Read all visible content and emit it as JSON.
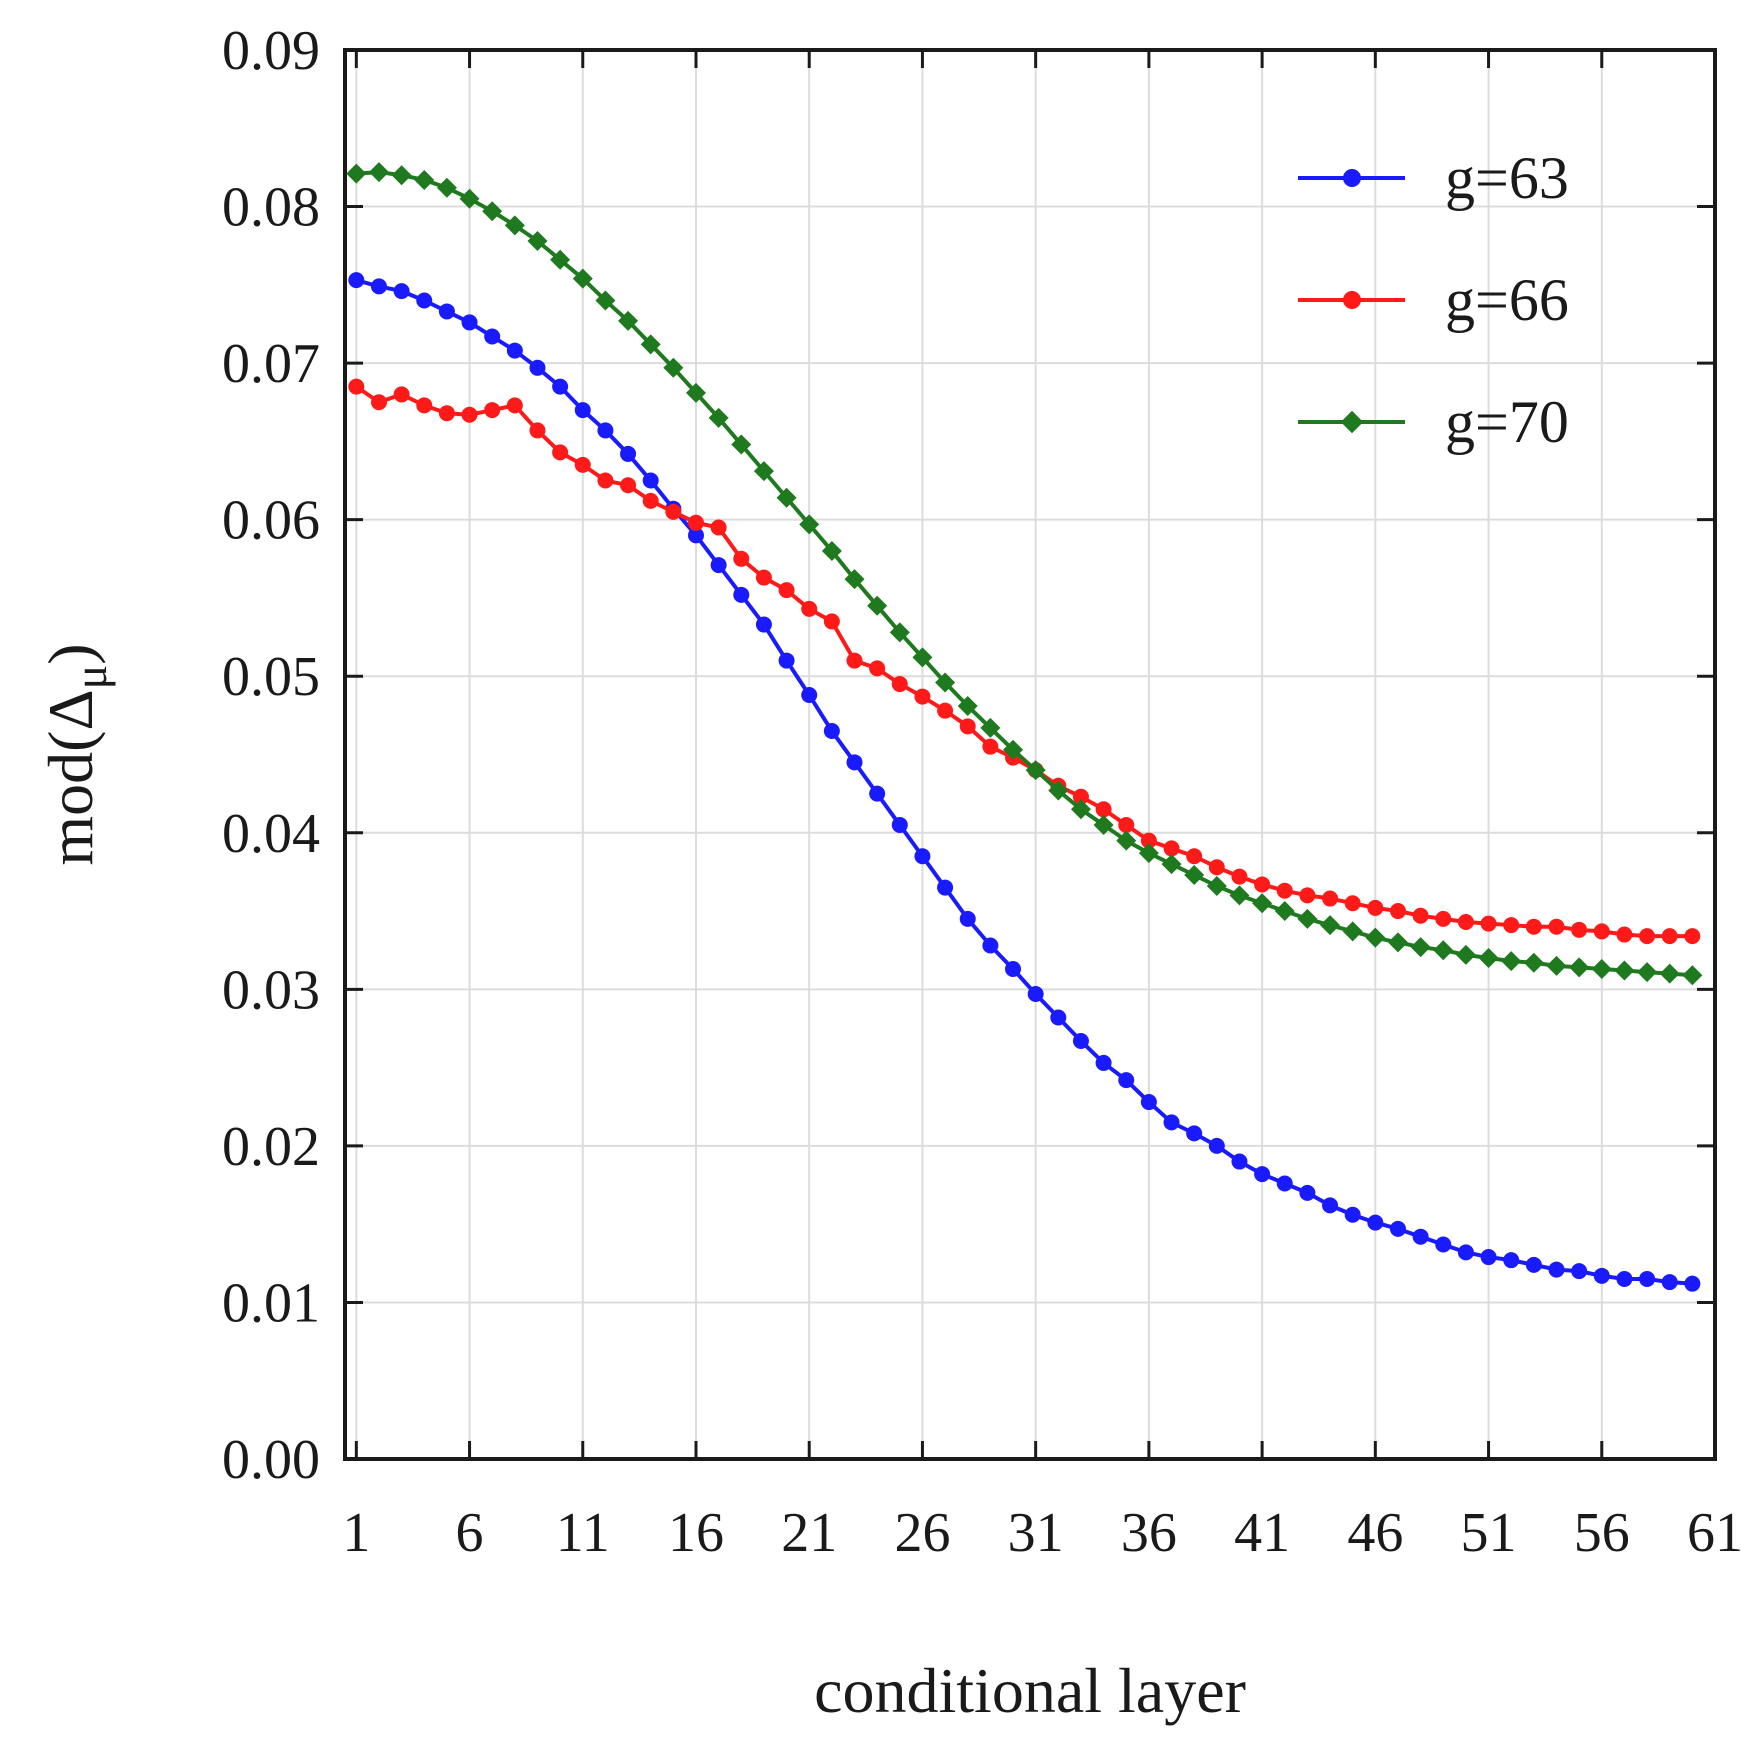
{
  "chart_data": {
    "type": "line",
    "title": "",
    "xlabel": "conditional layer",
    "ylabel": "mod(Δ",
    "ylabel_sub": "μ",
    "ylabel_close": ")",
    "xlim": [
      0.5,
      61
    ],
    "ylim": [
      0,
      0.09
    ],
    "x_ticks": [
      1,
      6,
      11,
      16,
      21,
      26,
      31,
      36,
      41,
      46,
      51,
      56,
      61
    ],
    "x_tick_labels": [
      "1",
      "6",
      "11",
      "16",
      "21",
      "26",
      "31",
      "36",
      "41",
      "46",
      "51",
      "56",
      "61"
    ],
    "y_ticks": [
      0,
      0.01,
      0.02,
      0.03,
      0.04,
      0.05,
      0.06,
      0.07,
      0.08,
      0.09
    ],
    "y_tick_labels": [
      "0.00",
      "0.01",
      "0.02",
      "0.03",
      "0.04",
      "0.05",
      "0.06",
      "0.07",
      "0.08",
      "0.09"
    ],
    "grid": true,
    "legend_position": "top-right",
    "x": [
      1,
      2,
      3,
      4,
      5,
      6,
      7,
      8,
      9,
      10,
      11,
      12,
      13,
      14,
      15,
      16,
      17,
      18,
      19,
      20,
      21,
      22,
      23,
      24,
      25,
      26,
      27,
      28,
      29,
      30,
      31,
      32,
      33,
      34,
      35,
      36,
      37,
      38,
      39,
      40,
      41,
      42,
      43,
      44,
      45,
      46,
      47,
      48,
      49,
      50,
      51,
      52,
      53,
      54,
      55,
      56,
      57,
      58,
      59,
      60
    ],
    "series": [
      {
        "name": "g=63",
        "color": "#1a1aff",
        "marker": "circle",
        "values": [
          0.0753,
          0.0749,
          0.0746,
          0.074,
          0.0733,
          0.0726,
          0.0717,
          0.0708,
          0.0697,
          0.0685,
          0.067,
          0.0657,
          0.0642,
          0.0625,
          0.0607,
          0.059,
          0.0571,
          0.0552,
          0.0533,
          0.051,
          0.0488,
          0.0465,
          0.0445,
          0.0425,
          0.0405,
          0.0385,
          0.0365,
          0.0345,
          0.0328,
          0.0313,
          0.0297,
          0.0282,
          0.0267,
          0.0253,
          0.0242,
          0.0228,
          0.0215,
          0.0208,
          0.02,
          0.019,
          0.0182,
          0.0176,
          0.017,
          0.0162,
          0.0156,
          0.0151,
          0.0147,
          0.0142,
          0.0137,
          0.0132,
          0.0129,
          0.0127,
          0.0124,
          0.0121,
          0.012,
          0.0117,
          0.0115,
          0.0115,
          0.0113,
          0.0112
        ]
      },
      {
        "name": "g=66",
        "color": "#ff1a1a",
        "marker": "circle",
        "values": [
          0.0685,
          0.0675,
          0.068,
          0.0673,
          0.0668,
          0.0667,
          0.067,
          0.0673,
          0.0657,
          0.0643,
          0.0635,
          0.0625,
          0.0622,
          0.0612,
          0.0605,
          0.0598,
          0.0595,
          0.0575,
          0.0563,
          0.0555,
          0.0543,
          0.0535,
          0.051,
          0.0505,
          0.0495,
          0.0487,
          0.0478,
          0.0468,
          0.0455,
          0.0448,
          0.044,
          0.043,
          0.0423,
          0.0415,
          0.0405,
          0.0395,
          0.039,
          0.0385,
          0.0378,
          0.0372,
          0.0367,
          0.0363,
          0.036,
          0.0358,
          0.0355,
          0.0352,
          0.035,
          0.0347,
          0.0345,
          0.0343,
          0.0342,
          0.0341,
          0.034,
          0.034,
          0.0338,
          0.0337,
          0.0335,
          0.0334,
          0.0334,
          0.0334
        ]
      },
      {
        "name": "g=70",
        "color": "#1f7a1f",
        "marker": "diamond",
        "values": [
          0.0821,
          0.0822,
          0.082,
          0.0817,
          0.0812,
          0.0805,
          0.0797,
          0.0788,
          0.0778,
          0.0766,
          0.0754,
          0.074,
          0.0727,
          0.0712,
          0.0697,
          0.0681,
          0.0665,
          0.0648,
          0.0631,
          0.0614,
          0.0597,
          0.058,
          0.0562,
          0.0545,
          0.0528,
          0.0512,
          0.0496,
          0.0481,
          0.0467,
          0.0453,
          0.044,
          0.0427,
          0.0415,
          0.0405,
          0.0395,
          0.0387,
          0.038,
          0.0373,
          0.0366,
          0.036,
          0.0355,
          0.035,
          0.0345,
          0.0341,
          0.0337,
          0.0333,
          0.033,
          0.0327,
          0.0325,
          0.0322,
          0.032,
          0.0318,
          0.0317,
          0.0315,
          0.0314,
          0.0313,
          0.0312,
          0.0311,
          0.031,
          0.0309
        ]
      }
    ]
  }
}
